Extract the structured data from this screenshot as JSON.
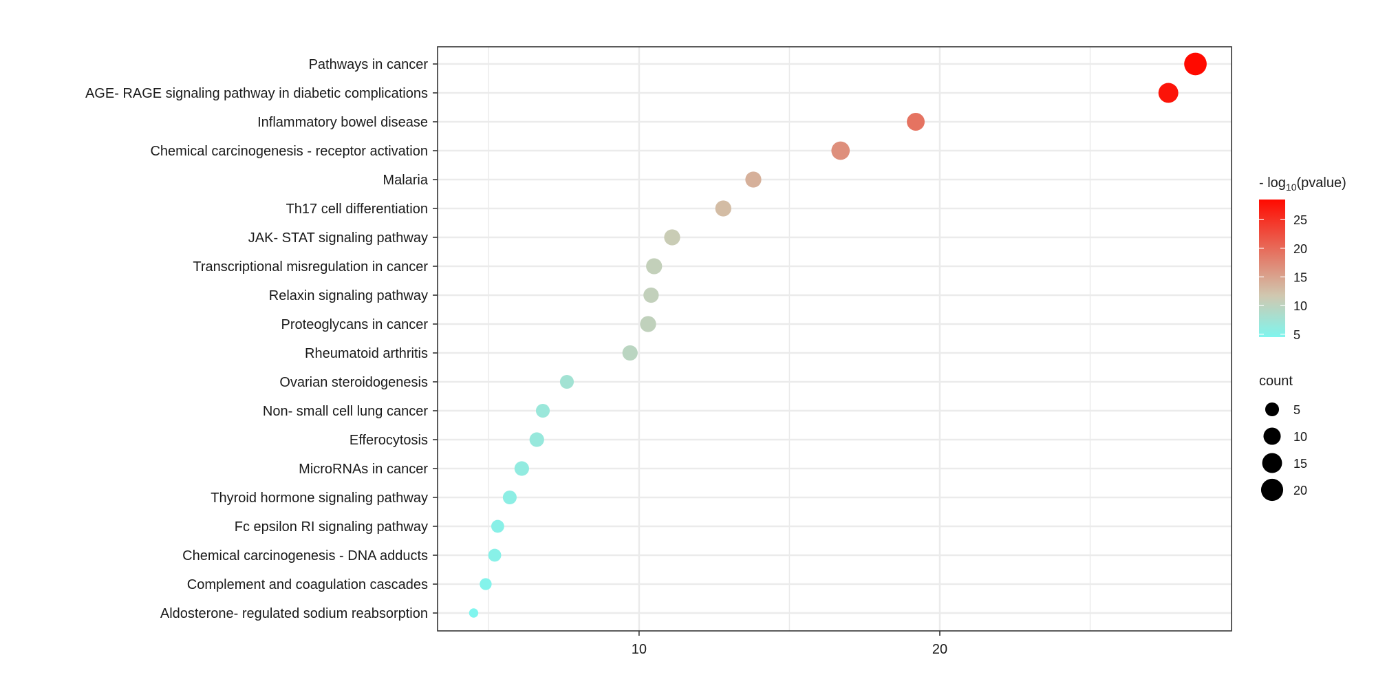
{
  "chart_data": {
    "type": "scatter",
    "title": "",
    "xlabel": "",
    "ylabel": "",
    "xlim": [
      3.3,
      29.7
    ],
    "x_ticks": [
      10,
      20
    ],
    "x_minor_grid": [
      5,
      15,
      25
    ],
    "grid": true,
    "categories": [
      "Pathways in cancer",
      "AGE- RAGE signaling pathway in diabetic complications",
      "Inflammatory bowel disease",
      "Chemical carcinogenesis -  receptor activation",
      "Malaria",
      "Th17 cell differentiation",
      "JAK- STAT signaling pathway",
      "Transcriptional misregulation in cancer",
      "Relaxin signaling pathway",
      "Proteoglycans in cancer",
      "Rheumatoid arthritis",
      "Ovarian steroidogenesis",
      "Non- small cell lung cancer",
      "Efferocytosis",
      "MicroRNAs in cancer",
      "Thyroid hormone signaling pathway",
      "Fc epsilon RI signaling pathway",
      "Chemical carcinogenesis -  DNA adducts",
      "Complement and coagulation cascades",
      "Aldosterone- regulated sodium reabsorption"
    ],
    "x": [
      28.5,
      27.6,
      19.2,
      16.7,
      13.8,
      12.8,
      11.1,
      10.5,
      10.4,
      10.3,
      9.7,
      7.6,
      6.8,
      6.6,
      6.1,
      5.7,
      5.3,
      5.2,
      4.9,
      4.5
    ],
    "neg_log10_pvalue": [
      28.5,
      27.6,
      19.2,
      16.7,
      13.8,
      12.8,
      11.1,
      10.5,
      10.4,
      10.3,
      9.7,
      7.6,
      6.8,
      6.6,
      6.1,
      5.7,
      5.3,
      5.2,
      4.9,
      4.5
    ],
    "count": [
      21,
      15,
      11,
      12,
      8,
      8,
      8,
      8,
      7,
      8,
      7,
      5,
      5,
      6,
      6,
      5,
      4,
      4,
      3,
      1
    ],
    "color_legend": {
      "title_prefix": "- log",
      "title_sub": "10",
      "title_suffix": "(pvalue)",
      "range": [
        4.5,
        28.5
      ],
      "ticks": [
        "5",
        "10",
        "15",
        "20",
        "25"
      ],
      "tick_values": [
        5,
        10,
        15,
        20,
        25
      ],
      "colors": {
        "low": "#80F5EE",
        "mid": "#D0C8B0",
        "high": "#FF0A00"
      },
      "placement": "right"
    },
    "size_legend": {
      "title": "count",
      "values": [
        5,
        10,
        15,
        20
      ],
      "labels": [
        "5",
        "10",
        "15",
        "20"
      ],
      "placement": "right"
    },
    "colors": {
      "grid": "#EBEBEB",
      "border": "#333333",
      "text": "#1A1A1A"
    }
  }
}
